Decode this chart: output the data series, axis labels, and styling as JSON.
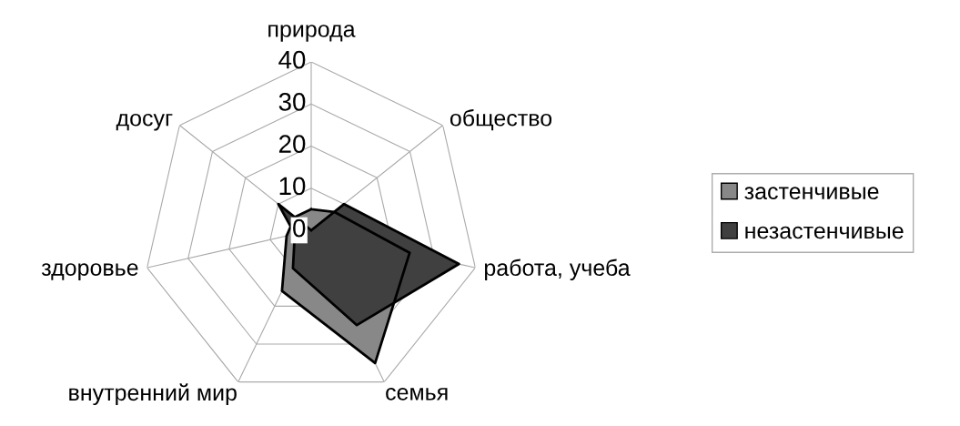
{
  "chart_data": {
    "type": "radar",
    "categories": [
      "природа",
      "общество",
      "работа, учеба",
      "семья",
      "внутренний мир",
      "здоровье",
      "досуг"
    ],
    "series": [
      {
        "name": "застенчивые",
        "color": "#888888",
        "values": [
          5,
          7,
          24,
          35,
          16,
          6,
          5
        ]
      },
      {
        "name": "незастенчивые",
        "color": "#404040",
        "values": [
          0,
          10,
          36,
          25,
          10,
          4,
          10
        ]
      }
    ],
    "ylim": [
      0,
      40
    ],
    "yticks": [
      0,
      10,
      20,
      30,
      40
    ],
    "grid": true,
    "legend": "right",
    "marker": "none",
    "line_style": "solid"
  }
}
